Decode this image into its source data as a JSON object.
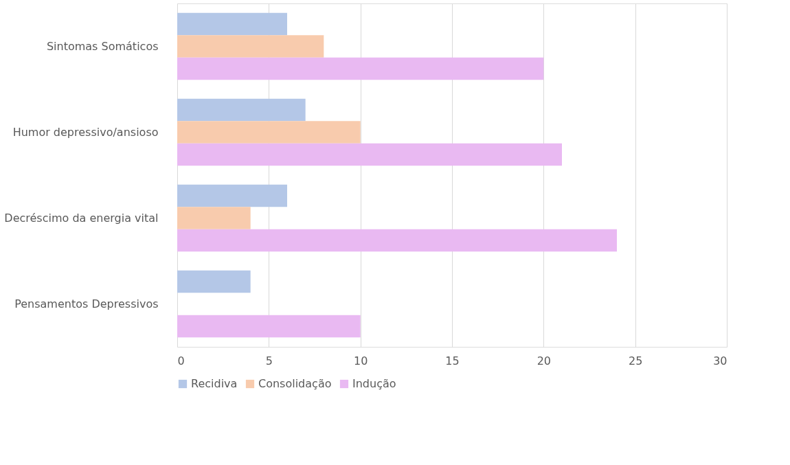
{
  "chart_data": {
    "type": "bar",
    "orientation": "horizontal",
    "categories": [
      "Sintomas Somáticos",
      "Humor depressivo/ansioso",
      "Decréscimo da energia vital",
      "Pensamentos Depressivos"
    ],
    "series": [
      {
        "name": "Recidiva",
        "color": "#b4c7e7",
        "values": [
          6,
          7,
          6,
          4
        ]
      },
      {
        "name": "Consolidação",
        "color": "#f8cbad",
        "values": [
          8,
          10,
          4,
          0
        ]
      },
      {
        "name": "Indução",
        "color": "#e9b9f2",
        "values": [
          20,
          21,
          24,
          10
        ]
      }
    ],
    "xlim": [
      0,
      30
    ],
    "xticks": [
      0,
      5,
      10,
      15,
      20,
      25,
      30
    ],
    "grid": "x",
    "legend": "bottom"
  }
}
